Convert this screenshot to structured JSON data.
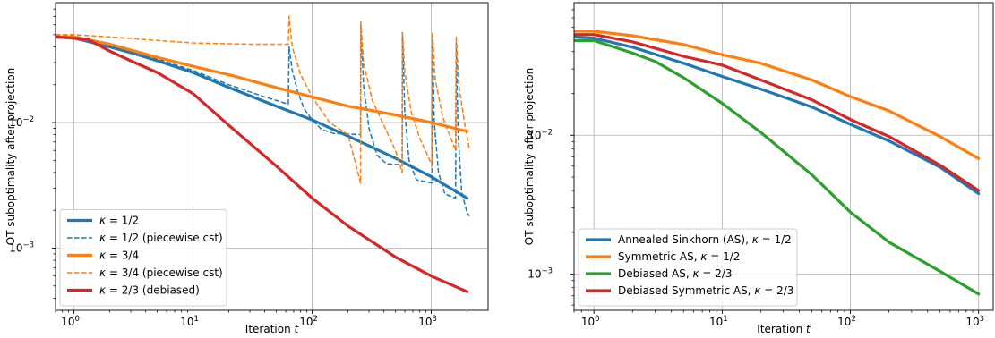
{
  "chart_data": [
    {
      "type": "line",
      "xscale": "log",
      "yscale": "log",
      "xlim": [
        0.7,
        3000
      ],
      "ylim": [
        0.00032,
        0.09
      ],
      "xlabel": "Iteration",
      "xlabel_var": "t",
      "ylabel": "OT suboptimality after projection",
      "grid": true,
      "legend_position": "lower-left",
      "xticks": [
        {
          "v": 1,
          "b": "10",
          "e": "0"
        },
        {
          "v": 10,
          "b": "10",
          "e": "1"
        },
        {
          "v": 100,
          "b": "10",
          "e": "2"
        },
        {
          "v": 1000,
          "b": "10",
          "e": "3"
        }
      ],
      "yticks": [
        {
          "v": 0.001,
          "b": "10",
          "e": "−3"
        },
        {
          "v": 0.01,
          "b": "10",
          "e": "−2"
        }
      ],
      "series": [
        {
          "name_math": "κ",
          "name_rest": " = 1/2",
          "color": "#1f77b4",
          "style": "solid",
          "points": [
            [
              0.7,
              0.048
            ],
            [
              1,
              0.047
            ],
            [
              2,
              0.04
            ],
            [
              3,
              0.036
            ],
            [
              5,
              0.031
            ],
            [
              10,
              0.025
            ],
            [
              20,
              0.019
            ],
            [
              50,
              0.0135
            ],
            [
              100,
              0.0105
            ],
            [
              200,
              0.0078
            ],
            [
              500,
              0.0052
            ],
            [
              1000,
              0.0037
            ],
            [
              2000,
              0.0025
            ]
          ]
        },
        {
          "name_math": "κ",
          "name_rest": " = 1/2 (piecewise cst)",
          "color": "#1f77b4",
          "style": "dashed",
          "points": [
            [
              0.7,
              0.05
            ],
            [
              1,
              0.049
            ],
            [
              2,
              0.042
            ],
            [
              3,
              0.037
            ],
            [
              5,
              0.032
            ],
            [
              10,
              0.026
            ],
            [
              20,
              0.02
            ],
            [
              40,
              0.016
            ],
            [
              63,
              0.014
            ],
            [
              64,
              0.04
            ],
            [
              68,
              0.026
            ],
            [
              75,
              0.018
            ],
            [
              85,
              0.013
            ],
            [
              100,
              0.0105
            ],
            [
              120,
              0.0088
            ],
            [
              150,
              0.0082
            ],
            [
              255,
              0.008
            ],
            [
              256,
              0.06
            ],
            [
              270,
              0.02
            ],
            [
              300,
              0.009
            ],
            [
              350,
              0.0055
            ],
            [
              420,
              0.0047
            ],
            [
              570,
              0.0046
            ],
            [
              572,
              0.052
            ],
            [
              600,
              0.012
            ],
            [
              650,
              0.005
            ],
            [
              750,
              0.0035
            ],
            [
              1020,
              0.0033
            ],
            [
              1024,
              0.05
            ],
            [
              1060,
              0.01
            ],
            [
              1150,
              0.004
            ],
            [
              1300,
              0.0027
            ],
            [
              1600,
              0.0025
            ],
            [
              1620,
              0.043
            ],
            [
              1680,
              0.008
            ],
            [
              1800,
              0.0028
            ],
            [
              2000,
              0.0019
            ],
            [
              2100,
              0.0018
            ]
          ]
        },
        {
          "name_math": "κ",
          "name_rest": " = 3/4",
          "color": "#ff7f0e",
          "style": "solid",
          "points": [
            [
              0.7,
              0.048
            ],
            [
              1,
              0.048
            ],
            [
              2,
              0.042
            ],
            [
              5,
              0.033
            ],
            [
              10,
              0.028
            ],
            [
              20,
              0.024
            ],
            [
              50,
              0.019
            ],
            [
              100,
              0.016
            ],
            [
              200,
              0.0135
            ],
            [
              500,
              0.0115
            ],
            [
              1000,
              0.01
            ],
            [
              2000,
              0.0085
            ]
          ]
        },
        {
          "name_math": "κ",
          "name_rest": " = 3/4 (piecewise cst)",
          "color": "#ff7f0e",
          "style": "dashed",
          "points": [
            [
              0.7,
              0.05
            ],
            [
              1,
              0.05
            ],
            [
              2,
              0.048
            ],
            [
              5,
              0.045
            ],
            [
              10,
              0.043
            ],
            [
              30,
              0.042
            ],
            [
              63,
              0.042
            ],
            [
              64,
              0.07
            ],
            [
              68,
              0.04
            ],
            [
              80,
              0.024
            ],
            [
              100,
              0.016
            ],
            [
              140,
              0.01
            ],
            [
              200,
              0.008
            ],
            [
              255,
              0.0033
            ],
            [
              256,
              0.063
            ],
            [
              270,
              0.03
            ],
            [
              320,
              0.015
            ],
            [
              400,
              0.0095
            ],
            [
              500,
              0.006
            ],
            [
              570,
              0.004
            ],
            [
              572,
              0.053
            ],
            [
              600,
              0.025
            ],
            [
              680,
              0.012
            ],
            [
              800,
              0.0075
            ],
            [
              1020,
              0.0045
            ],
            [
              1024,
              0.052
            ],
            [
              1080,
              0.022
            ],
            [
              1250,
              0.011
            ],
            [
              1600,
              0.006
            ],
            [
              1620,
              0.049
            ],
            [
              1700,
              0.02
            ],
            [
              1900,
              0.01
            ],
            [
              2100,
              0.006
            ]
          ]
        },
        {
          "name_math": "κ",
          "name_rest": " = 2/3 (debiased)",
          "color": "#d62728",
          "style": "solid",
          "points": [
            [
              0.7,
              0.048
            ],
            [
              1.3,
              0.046
            ],
            [
              2,
              0.037
            ],
            [
              3,
              0.031
            ],
            [
              5,
              0.025
            ],
            [
              10,
              0.017
            ],
            [
              20,
              0.0095
            ],
            [
              50,
              0.0045
            ],
            [
              100,
              0.0025
            ],
            [
              200,
              0.0015
            ],
            [
              500,
              0.00085
            ],
            [
              1000,
              0.0006
            ],
            [
              2000,
              0.00045
            ]
          ]
        }
      ]
    },
    {
      "type": "line",
      "xscale": "log",
      "yscale": "log",
      "xlim": [
        0.7,
        1300
      ],
      "ylim": [
        0.00055,
        0.09
      ],
      "xlabel": "Iteration",
      "xlabel_var": "t",
      "ylabel": "OT suboptimality after projection",
      "grid": true,
      "legend_position": "lower-left",
      "xticks": [
        {
          "v": 1,
          "b": "10",
          "e": "0"
        },
        {
          "v": 10,
          "b": "10",
          "e": "1"
        },
        {
          "v": 100,
          "b": "10",
          "e": "2"
        },
        {
          "v": 1000,
          "b": "10",
          "e": "3"
        }
      ],
      "yticks": [
        {
          "v": 0.001,
          "b": "10",
          "e": "−3"
        },
        {
          "v": 0.01,
          "b": "10",
          "e": "−2"
        }
      ],
      "series": [
        {
          "name_text": "Annealed Sinkhorn (AS), ",
          "name_math": "κ",
          "name_rest": " = 1/2",
          "color": "#1f77b4",
          "style": "solid",
          "points": [
            [
              0.7,
              0.051
            ],
            [
              1,
              0.05
            ],
            [
              2,
              0.043
            ],
            [
              5,
              0.033
            ],
            [
              10,
              0.0265
            ],
            [
              20,
              0.0215
            ],
            [
              50,
              0.016
            ],
            [
              100,
              0.012
            ],
            [
              200,
              0.0091
            ],
            [
              500,
              0.0059
            ],
            [
              1000,
              0.0038
            ]
          ]
        },
        {
          "name_text": "Symmetric AS, ",
          "name_math": "κ",
          "name_rest": " = 1/2",
          "color": "#ff7f0e",
          "style": "solid",
          "points": [
            [
              0.7,
              0.056
            ],
            [
              1,
              0.056
            ],
            [
              2,
              0.052
            ],
            [
              5,
              0.045
            ],
            [
              10,
              0.038
            ],
            [
              20,
              0.033
            ],
            [
              50,
              0.025
            ],
            [
              100,
              0.019
            ],
            [
              200,
              0.015
            ],
            [
              500,
              0.0098
            ],
            [
              1000,
              0.0068
            ]
          ]
        },
        {
          "name_text": "Debiased AS, ",
          "name_math": "κ",
          "name_rest": " = 2/3",
          "color": "#2ca02c",
          "style": "solid",
          "points": [
            [
              0.7,
              0.048
            ],
            [
              1,
              0.048
            ],
            [
              2,
              0.039
            ],
            [
              3,
              0.034
            ],
            [
              5,
              0.026
            ],
            [
              10,
              0.017
            ],
            [
              20,
              0.0105
            ],
            [
              50,
              0.0052
            ],
            [
              100,
              0.0028
            ],
            [
              200,
              0.0017
            ],
            [
              500,
              0.00105
            ],
            [
              1000,
              0.00072
            ]
          ]
        },
        {
          "name_text": "Debiased Symmetric AS, ",
          "name_math": "κ",
          "name_rest": " = 2/3",
          "color": "#d62728",
          "style": "solid",
          "points": [
            [
              0.7,
              0.053
            ],
            [
              1,
              0.053
            ],
            [
              2,
              0.047
            ],
            [
              5,
              0.037
            ],
            [
              10,
              0.032
            ],
            [
              20,
              0.025
            ],
            [
              50,
              0.018
            ],
            [
              100,
              0.013
            ],
            [
              200,
              0.0098
            ],
            [
              500,
              0.0061
            ],
            [
              1000,
              0.004
            ]
          ]
        }
      ]
    }
  ]
}
